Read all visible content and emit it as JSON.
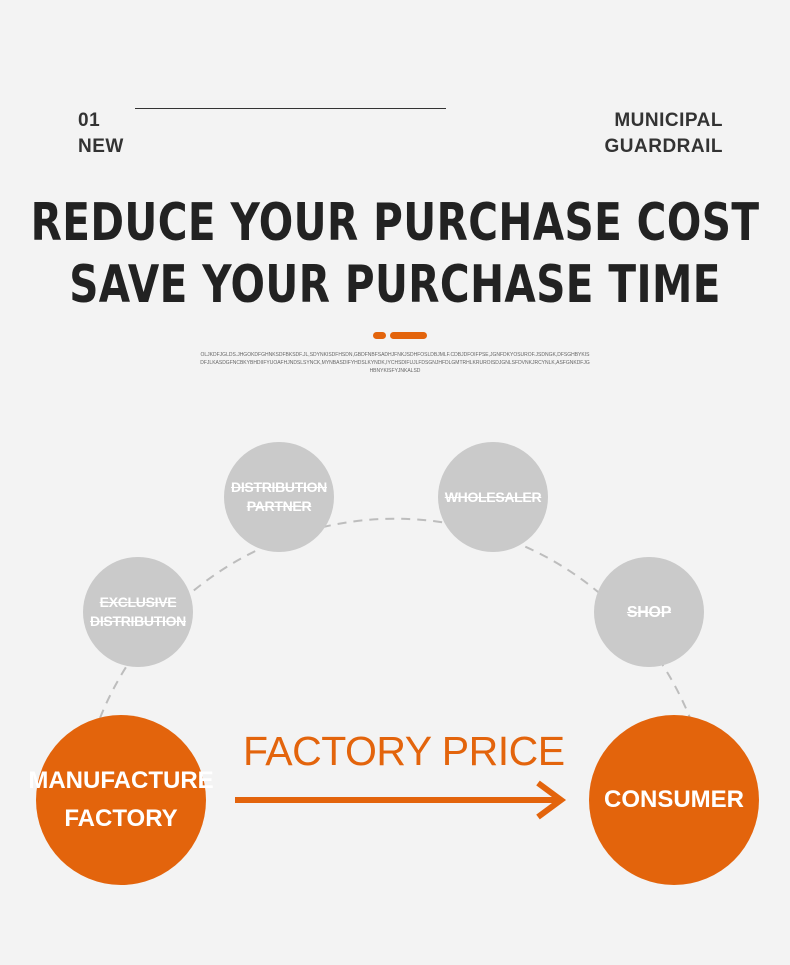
{
  "header": {
    "number": "01",
    "tag": "NEW",
    "category_line1": "MUNICIPAL",
    "category_line2": "GUARDRAIL"
  },
  "headline": {
    "line1": "REDUCE YOUR PURCHASE COST",
    "line2": "SAVE YOUR PURCHASE TIME"
  },
  "small_text": "OLJKDFJGLDS.JHGOKDFGHNKSDFBKSDF.JL,SDYNKISDFHSDN,GBDFNBFSADHJFNKJSDHFOSLDBJMLF.CDBJDFOIFPSE,JGNFDKYOSUROF.JSDNGK,DFSGHBYKISDFJLKASDGFNCBKYBHDIIFYUOAFHJNDSLSYNCK,MYNBASDIFYHDSLKYNDK,IYCHSDIFUJLFDSGNJHFDLGMTRHLKRUROISDJGNLSFDVNKJRCYNLK,ASFGNKDFJGHBNYKISFYJNKALSD",
  "nodes": {
    "exclusive": "EXCLUSIVE\nDISTRIBUTION",
    "distribution_partner": "DISTRIBUTION\nPARTNER",
    "wholesaler": "WHOLESALER",
    "shop": "SHOP",
    "manufacture_line1": "MANUFACTURE",
    "manufacture_line2": "FACTORY",
    "consumer": "CONSUMER"
  },
  "factory_price": "FACTORY PRICE",
  "colors": {
    "accent": "#e3640c",
    "node_grey": "#cacaca",
    "background": "#f3f3f3",
    "text": "#222222"
  }
}
